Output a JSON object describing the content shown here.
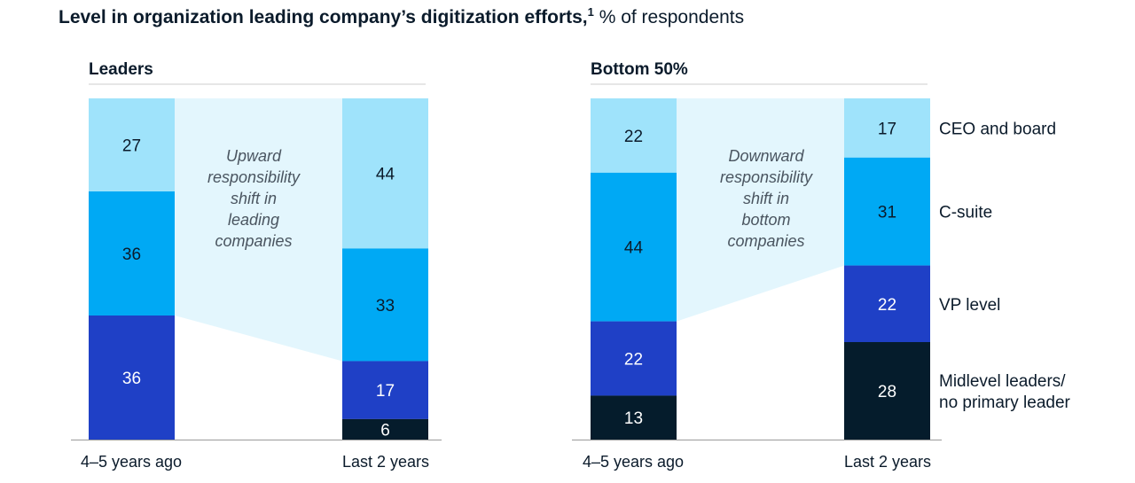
{
  "title": {
    "main": "Level in organization leading company’s digitization efforts,",
    "footnote_mark": "1",
    "unit": "% of respondents"
  },
  "colors": {
    "CEO and board": "#9fe3fb",
    "C-suite": "#00a9f4",
    "VP level": "#1f40c6",
    "Midlevel leaders/ no primary leader": "#051c2c",
    "shift_band": "#e3f6fd",
    "axis": "#9a9a9a",
    "header_rule": "#cccccc"
  },
  "legend": [
    {
      "name": "CEO and board",
      "lines": [
        "CEO and board"
      ]
    },
    {
      "name": "C-suite",
      "lines": [
        "C-suite"
      ]
    },
    {
      "name": "VP level",
      "lines": [
        "VP level"
      ]
    },
    {
      "name": "Midlevel leaders/ no primary leader",
      "lines": [
        "Midlevel leaders/",
        "no primary leader"
      ]
    }
  ],
  "chart_data": [
    {
      "type": "bar",
      "stacked": true,
      "title": "Leaders",
      "categories": [
        "4–5 years ago",
        "Last 2 years"
      ],
      "series": [
        {
          "name": "CEO and board",
          "values": [
            27,
            44
          ]
        },
        {
          "name": "C-suite",
          "values": [
            36,
            33
          ]
        },
        {
          "name": "VP level",
          "values": [
            36,
            17
          ]
        },
        {
          "name": "Midlevel leaders/ no primary leader",
          "values": [
            0,
            6
          ]
        }
      ],
      "annotation": [
        "Upward",
        "responsibility",
        "shift in",
        "leading",
        "companies"
      ],
      "ylim": [
        0,
        100
      ]
    },
    {
      "type": "bar",
      "stacked": true,
      "title": "Bottom 50%",
      "categories": [
        "4–5 years ago",
        "Last 2 years"
      ],
      "series": [
        {
          "name": "CEO and board",
          "values": [
            22,
            17
          ]
        },
        {
          "name": "C-suite",
          "values": [
            44,
            31
          ]
        },
        {
          "name": "VP level",
          "values": [
            22,
            22
          ]
        },
        {
          "name": "Midlevel leaders/ no primary leader",
          "values": [
            13,
            28
          ]
        }
      ],
      "annotation": [
        "Downward",
        "responsibility",
        "shift in",
        "bottom",
        "companies"
      ],
      "ylim": [
        0,
        100
      ]
    }
  ]
}
